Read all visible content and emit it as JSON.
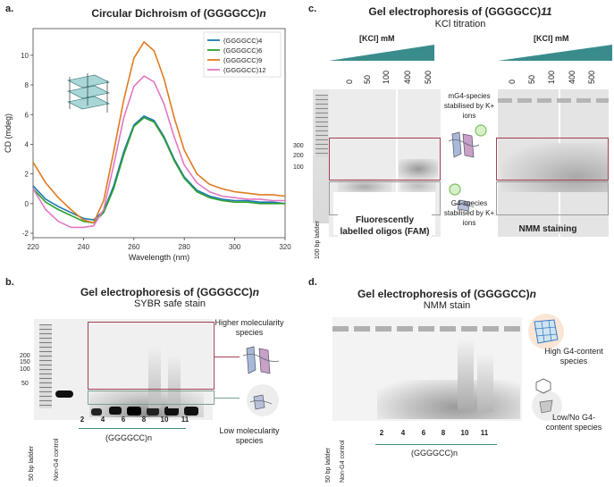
{
  "panel_a": {
    "label": "a.",
    "title": "Circular Dichroism of (GGGGCC)",
    "title_sub": "n",
    "chart_data": {
      "type": "line",
      "xlabel": "Wavelength (nm)",
      "ylabel": "CD (mdeg)",
      "xlim": [
        220,
        320
      ],
      "ylim": [
        -2.3,
        11.8
      ],
      "xticks": [
        "220",
        "240",
        "260",
        "280",
        "300",
        "320"
      ],
      "yticks": [
        "-2",
        "0",
        "2",
        "4",
        "6",
        "8",
        "10"
      ],
      "x": [
        220,
        225,
        230,
        235,
        240,
        244,
        248,
        252,
        256,
        260,
        264,
        268,
        272,
        276,
        280,
        285,
        290,
        295,
        300,
        305,
        310,
        315,
        320
      ],
      "series": [
        {
          "name": "(GGGGCC)4",
          "color": "#1f77b4",
          "values": [
            1.2,
            0.3,
            -0.2,
            -0.6,
            -1.0,
            -1.1,
            -0.5,
            1.2,
            3.5,
            5.3,
            5.9,
            5.6,
            4.5,
            3.0,
            1.8,
            0.9,
            0.5,
            0.3,
            0.2,
            0.2,
            0.1,
            0.1,
            0.0
          ]
        },
        {
          "name": "(GGGGCC)6",
          "color": "#2ca02c",
          "values": [
            1.0,
            0.1,
            -0.4,
            -0.8,
            -1.2,
            -1.3,
            -0.6,
            1.0,
            3.3,
            5.2,
            5.8,
            5.5,
            4.4,
            2.9,
            1.7,
            0.8,
            0.4,
            0.2,
            0.1,
            0.1,
            0.0,
            0.0,
            0.0
          ]
        },
        {
          "name": "(GGGGCC)9",
          "color": "#e07b20",
          "values": [
            2.8,
            1.4,
            0.4,
            -0.4,
            -1.1,
            -1.3,
            0.2,
            3.5,
            7.0,
            9.8,
            10.9,
            10.3,
            8.4,
            5.8,
            3.6,
            2.0,
            1.3,
            1.0,
            0.8,
            0.7,
            0.6,
            0.6,
            0.5
          ]
        },
        {
          "name": "(GGGGCC)12",
          "color": "#e377c2",
          "values": [
            1.0,
            -0.4,
            -1.2,
            -1.6,
            -1.6,
            -1.5,
            -0.4,
            2.6,
            5.8,
            7.9,
            8.6,
            8.2,
            6.7,
            4.5,
            2.6,
            1.4,
            0.8,
            0.5,
            0.4,
            0.3,
            0.3,
            0.2,
            0.2
          ]
        }
      ]
    }
  },
  "panel_b": {
    "label": "b.",
    "title": "Gel electrophoresis of (GGGGCC)",
    "title_sub": "n",
    "subtitle": "SYBR safe stain",
    "ladder_ticks": [
      "200",
      "150",
      "100",
      "50"
    ],
    "ladder_label": "50 bp ladder",
    "control_label": "Non-G4 control",
    "lanes": [
      "2",
      "4",
      "6",
      "8",
      "10",
      "11"
    ],
    "group_label": "(GGGGCC)n",
    "higher_label": "Higher molecularity species",
    "low_label": "Low molecularity species"
  },
  "panel_c": {
    "label": "c.",
    "title": "Gel electrophoresis of (GGGGCC)",
    "title_sub": "11",
    "subtitle": "KCl titration",
    "kcl_label": "[KCl] mM",
    "conc": [
      "0",
      "50",
      "100",
      "400",
      "500"
    ],
    "ladder_ticks": [
      "300",
      "200",
      "100"
    ],
    "ladder_label": "100 bp ladder",
    "fam_label": "Fluorescently labelled oligos (FAM)",
    "nmm_label": "NMM staining",
    "mg4_label": "mG4-species stabilised by K+ ions",
    "g4_label": "G4-species stabilised by K+ ions"
  },
  "panel_d": {
    "label": "d.",
    "title": "Gel electrophoresis of (GGGGCC)",
    "title_sub": "n",
    "subtitle": "NMM stain",
    "ladder_label": "50 bp ladder",
    "control_label": "Non-G4 control",
    "lanes": [
      "2",
      "4",
      "6",
      "8",
      "10",
      "11"
    ],
    "group_label": "(GGGGCC)n",
    "high_label": "High G4-content species",
    "low_label": "Low/No G4-content species"
  },
  "colors": {
    "box_red": "#a04050",
    "box_gray": "#9a9a9a",
    "teal": "#3a8c8c",
    "teal_dark": "#2d6f7a"
  }
}
